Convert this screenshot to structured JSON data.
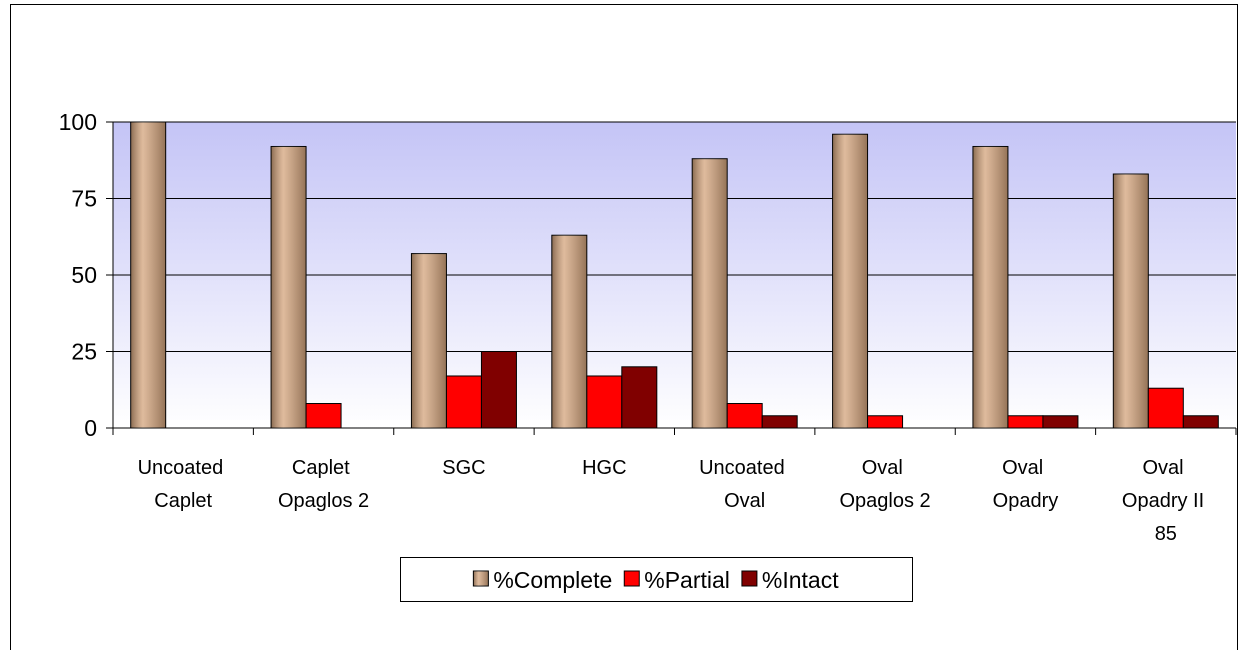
{
  "chart_data": {
    "type": "bar",
    "categories": [
      "Uncoated Caplet",
      "Caplet Opaglos 2",
      "SGC",
      "HGC",
      "Uncoated Oval",
      "Oval Opaglos 2",
      "Oval Opadry",
      "Oval Opadry II 85"
    ],
    "series": [
      {
        "name": "%Complete",
        "color": "#d4a47c",
        "values": [
          100,
          92,
          57,
          63,
          88,
          96,
          92,
          83
        ]
      },
      {
        "name": "%Partial",
        "color": "#ff0000",
        "values": [
          0,
          8,
          17,
          17,
          8,
          4,
          4,
          13
        ]
      },
      {
        "name": "%Intact",
        "color": "#800000",
        "values": [
          0,
          0,
          25,
          20,
          4,
          0,
          4,
          4
        ]
      }
    ],
    "ylim": [
      0,
      100
    ],
    "yticks": [
      0,
      25,
      50,
      75,
      100
    ],
    "grid": true,
    "legend": "bottom"
  }
}
